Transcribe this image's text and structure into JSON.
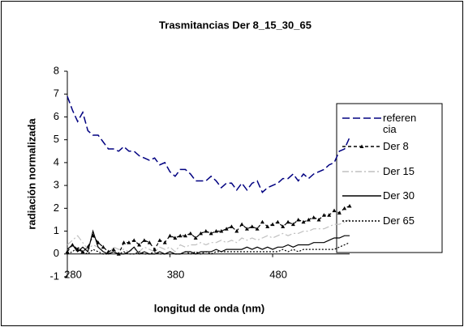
{
  "chart_data": {
    "type": "line",
    "title": "Trasmitancias Der 8_15_30_65",
    "x_label": "longitud de onda (nm)",
    "y_label": "radiación normalizada",
    "xlim": [
      280,
      555
    ],
    "xticks": [
      280,
      380,
      480
    ],
    "ylim": [
      -1,
      8
    ],
    "yticks": [
      -1,
      0,
      1,
      2,
      3,
      4,
      5,
      6,
      7,
      8
    ],
    "grid": false,
    "legend": "right",
    "x": [
      280,
      285,
      290,
      295,
      300,
      305,
      310,
      315,
      320,
      325,
      330,
      335,
      340,
      345,
      350,
      355,
      360,
      365,
      370,
      375,
      380,
      385,
      390,
      395,
      400,
      405,
      410,
      415,
      420,
      425,
      430,
      435,
      440,
      445,
      450,
      455,
      460,
      465,
      470,
      475,
      480,
      485,
      490,
      495,
      500,
      505,
      510,
      515,
      520,
      525,
      530,
      535,
      540,
      545,
      550,
      555
    ],
    "series": [
      {
        "name": "referencia",
        "color": "#000080",
        "dash": "long-dash",
        "marker": "none",
        "values": [
          6.9,
          6.3,
          5.8,
          6.2,
          5.4,
          5.2,
          5.2,
          4.9,
          4.6,
          4.6,
          4.5,
          4.7,
          4.5,
          4.5,
          4.3,
          4.2,
          4.1,
          4.2,
          3.9,
          4.0,
          3.6,
          3.4,
          3.7,
          3.7,
          3.5,
          3.2,
          3.2,
          3.2,
          3.4,
          3.2,
          2.9,
          3.1,
          3.1,
          2.8,
          3.1,
          2.8,
          3.1,
          3.2,
          2.7,
          2.9,
          3.0,
          3.1,
          3.3,
          3.3,
          3.5,
          3.2,
          3.5,
          3.3,
          3.5,
          3.6,
          3.7,
          3.9,
          4.0,
          4.5,
          4.6,
          5.1
        ]
      },
      {
        "name": "Der 8",
        "color": "#000000",
        "dash": "dash",
        "marker": "triangle",
        "values": [
          0.1,
          0.4,
          0.2,
          0.1,
          0.3,
          0.8,
          0.5,
          0.3,
          0.1,
          0.2,
          0.0,
          0.5,
          0.5,
          0.6,
          0.4,
          0.6,
          0.5,
          0.2,
          0.6,
          0.5,
          0.8,
          0.7,
          0.8,
          0.8,
          0.9,
          0.7,
          0.9,
          1.0,
          0.9,
          1.0,
          1.0,
          1.1,
          1.2,
          1.0,
          1.3,
          1.1,
          1.2,
          1.1,
          1.4,
          1.2,
          1.3,
          1.4,
          1.2,
          1.4,
          1.3,
          1.5,
          1.4,
          1.5,
          1.6,
          1.5,
          1.7,
          1.7,
          1.9,
          1.8,
          2.0,
          2.1
        ]
      },
      {
        "name": "Der 15",
        "color": "#c0c0c0",
        "dash": "dash-dot",
        "marker": "none",
        "values": [
          0.4,
          0.6,
          0.8,
          0.5,
          0.2,
          0.4,
          0.3,
          0.1,
          0.0,
          0.3,
          0.2,
          0.2,
          0.1,
          0.2,
          0.1,
          0.3,
          0.2,
          0.1,
          0.3,
          0.2,
          0.3,
          0.1,
          0.4,
          0.3,
          0.4,
          0.4,
          0.5,
          0.4,
          0.5,
          0.5,
          0.6,
          0.5,
          0.6,
          0.5,
          0.7,
          0.6,
          0.7,
          0.6,
          0.7,
          0.8,
          0.7,
          0.8,
          0.9,
          0.8,
          0.9,
          0.9,
          1.0,
          1.0,
          1.1,
          1.1,
          1.1,
          1.2,
          1.3,
          1.3,
          1.4,
          1.5
        ]
      },
      {
        "name": "Der 30",
        "color": "#000000",
        "dash": "solid",
        "marker": "none",
        "values": [
          0.2,
          0.4,
          0.1,
          0.3,
          0.1,
          1.0,
          0.3,
          0.1,
          0.0,
          0.1,
          0.0,
          0.0,
          0.1,
          0.3,
          0.0,
          0.1,
          0.0,
          0.0,
          0.1,
          0.0,
          0.1,
          0.0,
          0.0,
          0.1,
          0.1,
          0.0,
          0.1,
          0.1,
          0.1,
          0.2,
          0.1,
          0.2,
          0.2,
          0.2,
          0.2,
          0.3,
          0.2,
          0.3,
          0.2,
          0.3,
          0.2,
          0.3,
          0.3,
          0.4,
          0.3,
          0.4,
          0.4,
          0.4,
          0.5,
          0.5,
          0.5,
          0.6,
          0.7,
          0.7,
          0.8,
          0.8
        ]
      },
      {
        "name": "Der 65",
        "color": "#000000",
        "dash": "dot",
        "marker": "none",
        "values": [
          0.0,
          0.1,
          0.3,
          0.1,
          0.0,
          0.2,
          0.1,
          0.0,
          0.0,
          0.1,
          0.0,
          0.1,
          0.0,
          0.0,
          0.1,
          0.0,
          0.0,
          0.1,
          0.0,
          0.0,
          0.1,
          0.0,
          0.0,
          0.1,
          0.0,
          0.1,
          0.0,
          0.1,
          0.0,
          0.1,
          0.1,
          0.1,
          0.1,
          0.1,
          0.1,
          0.1,
          0.1,
          0.1,
          0.1,
          0.1,
          0.1,
          0.1,
          0.2,
          0.1,
          0.2,
          0.1,
          0.2,
          0.2,
          0.2,
          0.2,
          0.2,
          0.2,
          0.2,
          0.3,
          0.4,
          0.5
        ]
      }
    ]
  }
}
